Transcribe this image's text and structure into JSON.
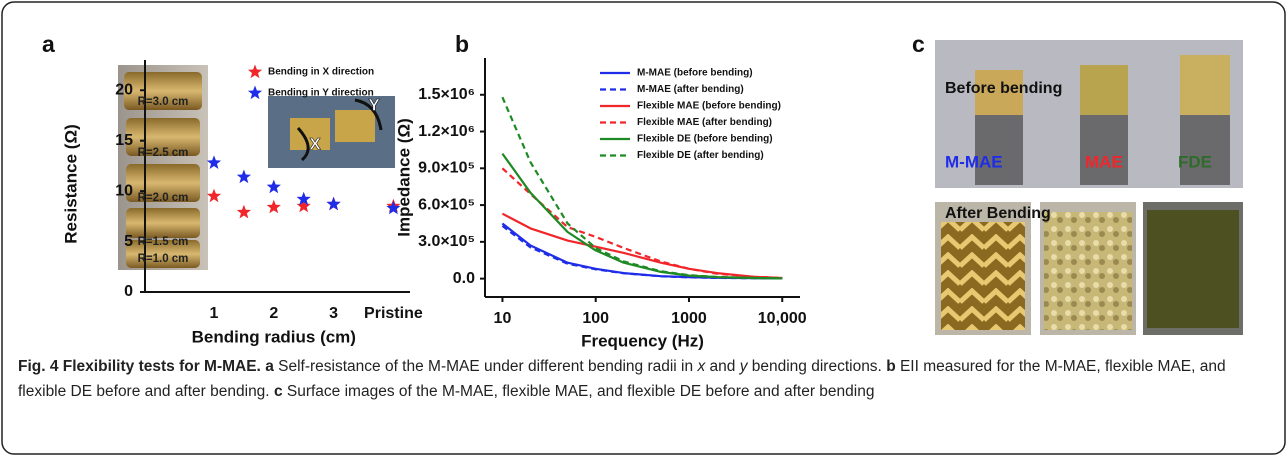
{
  "panel_labels": [
    "a",
    "b",
    "c"
  ],
  "chart_data": [
    {
      "type": "scatter",
      "y_label": "Resistance (Ω)",
      "x_label": "Bending radius (cm)",
      "categories": [
        "1",
        null,
        "2",
        null,
        "3",
        null,
        "Pristine"
      ],
      "series": [
        {
          "name": "Bending in X direction",
          "color": "#f0262b",
          "marker": "star",
          "values": [
            9.5,
            7.9,
            8.4,
            8.5,
            8.7,
            null,
            8.5
          ]
        },
        {
          "name": "Bending in Y direction",
          "color": "#1f2de8",
          "marker": "star",
          "values": [
            12.8,
            11.4,
            10.4,
            9.2,
            8.7,
            null,
            8.3
          ]
        }
      ],
      "ylim": [
        0,
        23
      ],
      "yticks": [
        0,
        5,
        10,
        15,
        20
      ],
      "legend": "upper right",
      "inset_labels": [
        "R=3.0 cm",
        "R=2.5 cm",
        "R=2.0 cm",
        "R=1.5 cm",
        "R=1.0 cm"
      ],
      "inset_axes": [
        "X",
        "Y"
      ]
    },
    {
      "type": "line",
      "y_label": "Impedance (Ω)",
      "x_label": "Frequency (Hz)",
      "x": [
        10,
        20,
        50,
        100,
        200,
        500,
        1000,
        2000,
        5000,
        10000
      ],
      "xscale": "log",
      "xlim": [
        6.5,
        15500
      ],
      "xticks": [
        10,
        100,
        1000,
        {
          "value": 10000,
          "label": "10,000"
        }
      ],
      "ylim": [
        -150000,
        1800000
      ],
      "yticks": [
        {
          "value": 0,
          "label": "0.0"
        },
        {
          "value": 300000,
          "label": "3.0×10⁵"
        },
        {
          "value": 600000,
          "label": "6.0×10⁵"
        },
        {
          "value": 900000,
          "label": "9.0×10⁵"
        },
        {
          "value": 1200000,
          "label": "1.2×10⁶"
        },
        {
          "value": 1500000,
          "label": "1.5×10⁶"
        }
      ],
      "legend": "upper right",
      "series": [
        {
          "name": "M-MAE (before bending)",
          "color": "#1f2de8",
          "dash": false,
          "values": [
            450000,
            270000,
            130000,
            80000,
            45000,
            20000,
            12000,
            7000,
            3000,
            2000
          ]
        },
        {
          "name": "M-MAE (after bending)",
          "color": "#1f2de8",
          "dash": true,
          "values": [
            430000,
            255000,
            122000,
            76000,
            43000,
            19000,
            11000,
            6000,
            3000,
            2000
          ]
        },
        {
          "name": "Flexible MAE (before bending)",
          "color": "#f0262b",
          "dash": false,
          "values": [
            530000,
            410000,
            310000,
            260000,
            210000,
            130000,
            80000,
            45000,
            15000,
            5000
          ]
        },
        {
          "name": "Flexible MAE (after bending)",
          "color": "#f0262b",
          "dash": true,
          "values": [
            900000,
            690000,
            420000,
            340000,
            250000,
            140000,
            80000,
            40000,
            15000,
            5000
          ]
        },
        {
          "name": "Flexible DE (before bending)",
          "color": "#1e8a23",
          "dash": false,
          "values": [
            1020000,
            700000,
            380000,
            230000,
            130000,
            55000,
            25000,
            12000,
            5000,
            2000
          ]
        },
        {
          "name": "Flexible DE (after bending)",
          "color": "#1e8a23",
          "dash": true,
          "values": [
            1480000,
            950000,
            450000,
            250000,
            140000,
            60000,
            28000,
            13000,
            5000,
            2000
          ]
        }
      ]
    }
  ],
  "photos": {
    "before_title": "Before bending",
    "after_title": "After Bending",
    "samples": [
      {
        "label": "M-MAE",
        "color": "#1f2de8"
      },
      {
        "label": "MAE",
        "color": "#f0262b"
      },
      {
        "label": "FDE",
        "color": "#2f6b2a"
      }
    ]
  },
  "caption": {
    "parts": [
      {
        "text": "Fig. 4 Flexibility tests for M-MAE.",
        "style": "bold"
      },
      {
        "text": "a",
        "style": "bold"
      },
      {
        "text": "Self-resistance of the M-MAE under different bending radii in"
      },
      {
        "text": "x",
        "style": "italic"
      },
      {
        "text": "and"
      },
      {
        "text": "y",
        "style": "italic"
      },
      {
        "text": "bending directions."
      },
      {
        "text": "b",
        "style": "bold"
      },
      {
        "text": "EII measured for the M-MAE, flexible MAE, and flexible DE before and after bending."
      },
      {
        "text": "c",
        "style": "bold"
      },
      {
        "text": "Surface images of the M-MAE, flexible MAE, and flexible DE before and after bending"
      }
    ]
  }
}
